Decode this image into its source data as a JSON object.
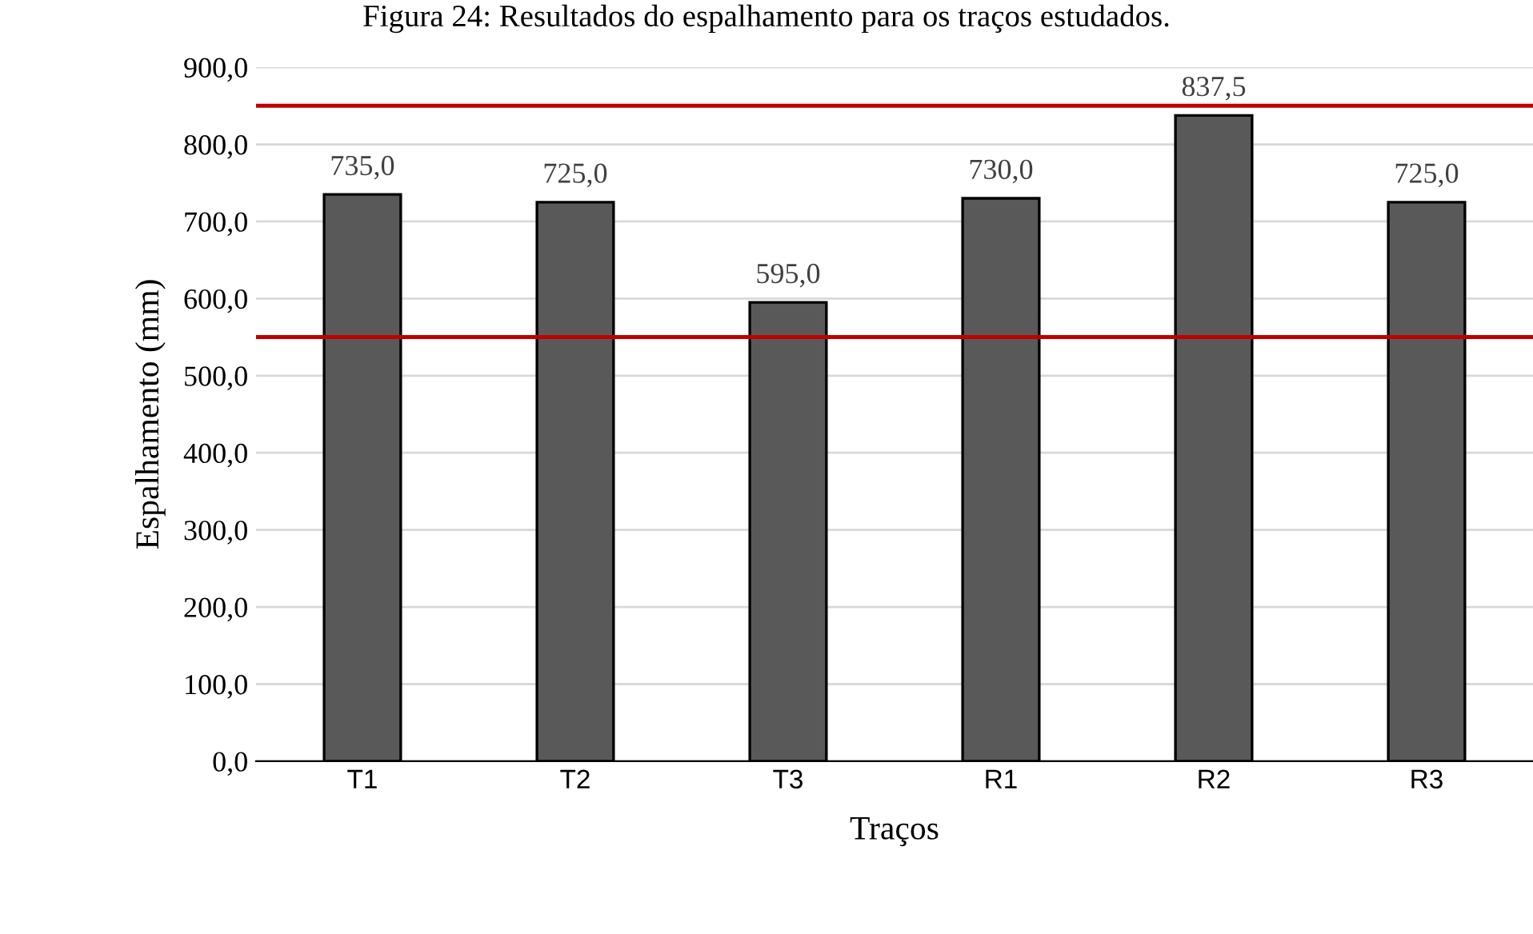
{
  "chart_data": {
    "type": "bar",
    "title": "Figura 24: Resultados do espalhamento para os traços estudados.",
    "xlabel": "Traços",
    "ylabel": "Espalhamento (mm)",
    "categories": [
      "T1",
      "T2",
      "T3",
      "R1",
      "R2",
      "R3"
    ],
    "values": [
      735.0,
      725.0,
      595.0,
      730.0,
      837.5,
      725.0
    ],
    "value_labels": [
      "735,0",
      "725,0",
      "595,0",
      "730,0",
      "837,5",
      "725,0"
    ],
    "color": "#595959",
    "ylim": [
      0,
      900
    ],
    "yticks": [
      {
        "value": 0,
        "label": "0,0"
      },
      {
        "value": 100,
        "label": "100,0"
      },
      {
        "value": 200,
        "label": "200,0"
      },
      {
        "value": 300,
        "label": "300,0"
      },
      {
        "value": 400,
        "label": "400,0"
      },
      {
        "value": 500,
        "label": "500,0"
      },
      {
        "value": 600,
        "label": "600,0"
      },
      {
        "value": 700,
        "label": "700,0"
      },
      {
        "value": 800,
        "label": "800,0"
      },
      {
        "value": 900,
        "label": "900,0"
      }
    ],
    "grid": "y",
    "ref_lines": [
      {
        "axis": "y",
        "value": 850,
        "color": "#c00000"
      },
      {
        "axis": "y",
        "value": 550,
        "color": "#c00000"
      }
    ]
  }
}
